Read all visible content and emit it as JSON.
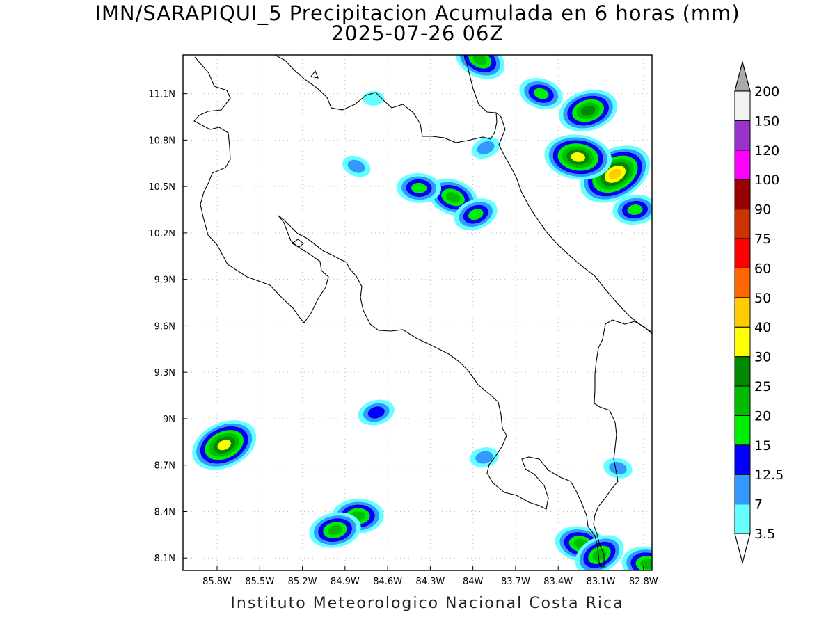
{
  "title": "IMN/SARAPIQUI_5 Precipitacion Acumulada en 6 horas (mm)",
  "subtitle": "2025-07-26 06Z",
  "footer": "Instituto Meteorologico Nacional Costa Rica",
  "lon_ticks": [
    "85.8W",
    "85.5W",
    "85.2W",
    "84.9W",
    "84.6W",
    "84.3W",
    "84W",
    "83.7W",
    "83.4W",
    "83.1W",
    "82.8W"
  ],
  "lat_ticks": [
    "11.1N",
    "10.8N",
    "10.5N",
    "10.2N",
    "9.9N",
    "9.6N",
    "9.3N",
    "9N",
    "8.7N",
    "8.4N",
    "8.1N"
  ],
  "colorbar": {
    "levels": [
      "3.5",
      "7",
      "12.5",
      "15",
      "20",
      "25",
      "30",
      "40",
      "50",
      "60",
      "75",
      "90",
      "100",
      "120",
      "150",
      "200"
    ],
    "colors": [
      "#ffffff",
      "#66ffff",
      "#3399ff",
      "#0000ff",
      "#00ee00",
      "#00bb00",
      "#008800",
      "#ffff00",
      "#ffcc00",
      "#ff6600",
      "#ff0000",
      "#cc3300",
      "#990000",
      "#ff00ff",
      "#9933cc",
      "#f2f2f2",
      "#aaaaaa"
    ]
  },
  "chart_data": {
    "type": "heatmap",
    "title": "IMN/SARAPIQUI_5 Precipitacion Acumulada en 6 horas (mm)",
    "subtitle": "2025-07-26 06Z",
    "xlabel": "",
    "ylabel": "",
    "xlim": [
      -86.04,
      -82.74
    ],
    "ylim": [
      8.02,
      11.35
    ],
    "units": "mm",
    "cells": [
      {
        "lon": -83.0,
        "lat": 10.58,
        "value": 45
      },
      {
        "lon": -83.26,
        "lat": 10.69,
        "value": 32
      },
      {
        "lon": -83.19,
        "lat": 10.99,
        "value": 28
      },
      {
        "lon": -84.14,
        "lat": 10.43,
        "value": 20
      },
      {
        "lon": -84.81,
        "lat": 8.37,
        "value": 20
      },
      {
        "lon": -85.75,
        "lat": 8.83,
        "value": 35
      },
      {
        "lon": -83.24,
        "lat": 8.19,
        "value": 20
      },
      {
        "lon": -84.97,
        "lat": 8.28,
        "value": 20
      },
      {
        "lon": -83.95,
        "lat": 11.32,
        "value": 20
      },
      {
        "lon": -84.38,
        "lat": 10.49,
        "value": 15
      },
      {
        "lon": -83.98,
        "lat": 10.32,
        "value": 15
      },
      {
        "lon": -83.52,
        "lat": 11.1,
        "value": 15
      },
      {
        "lon": -82.86,
        "lat": 10.35,
        "value": 15
      },
      {
        "lon": -83.11,
        "lat": 8.12,
        "value": 20
      },
      {
        "lon": -82.77,
        "lat": 8.06,
        "value": 20
      },
      {
        "lon": -84.68,
        "lat": 9.04,
        "value": 12.5
      },
      {
        "lon": -84.82,
        "lat": 10.63,
        "value": 7
      },
      {
        "lon": -84.7,
        "lat": 11.07,
        "value": 3.5
      },
      {
        "lon": -83.91,
        "lat": 10.75,
        "value": 7
      },
      {
        "lon": -82.98,
        "lat": 8.68,
        "value": 7
      },
      {
        "lon": -83.92,
        "lat": 8.75,
        "value": 7
      }
    ]
  }
}
